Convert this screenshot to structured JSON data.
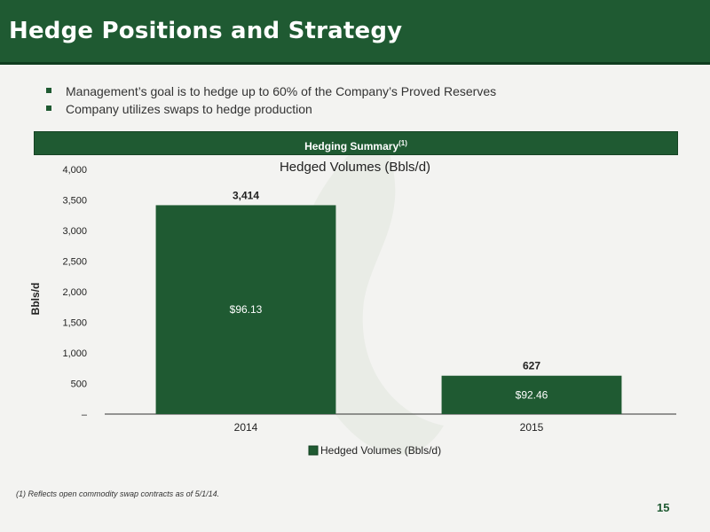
{
  "header": {
    "title": "Hedge Positions and Strategy"
  },
  "bullets": [
    "Management’s goal is to hedge up to 60% of the Company’s Proved Reserves",
    "Company utilizes swaps to hedge production"
  ],
  "summary": {
    "title": "Hedging Summary",
    "note_marker": "(1)"
  },
  "chart_data": {
    "type": "bar",
    "title": "Hedged Volumes (Bbls/d)",
    "xlabel": "",
    "ylabel": "Bbls/d",
    "categories": [
      "2014",
      "2015"
    ],
    "series": [
      {
        "name": "Hedged Volumes (Bbls/d)",
        "values": [
          3414,
          627
        ],
        "value_labels": [
          "3,414",
          "627"
        ],
        "price_labels": [
          "$96.13",
          "$92.46"
        ]
      }
    ],
    "ylim": [
      0,
      4000
    ],
    "yticks": [
      0,
      500,
      1000,
      1500,
      2000,
      2500,
      3000,
      3500,
      4000
    ],
    "ytick_labels": [
      "–",
      "500",
      "1,000",
      "1,500",
      "2,000",
      "2,500",
      "3,000",
      "3,500",
      "4,000"
    ],
    "legend_position": "bottom",
    "grid": false,
    "colors": {
      "bar": "#1f5a32"
    }
  },
  "footnote": "(1) Reflects open commodity swap contracts as of 5/1/14.",
  "page_number": "15"
}
